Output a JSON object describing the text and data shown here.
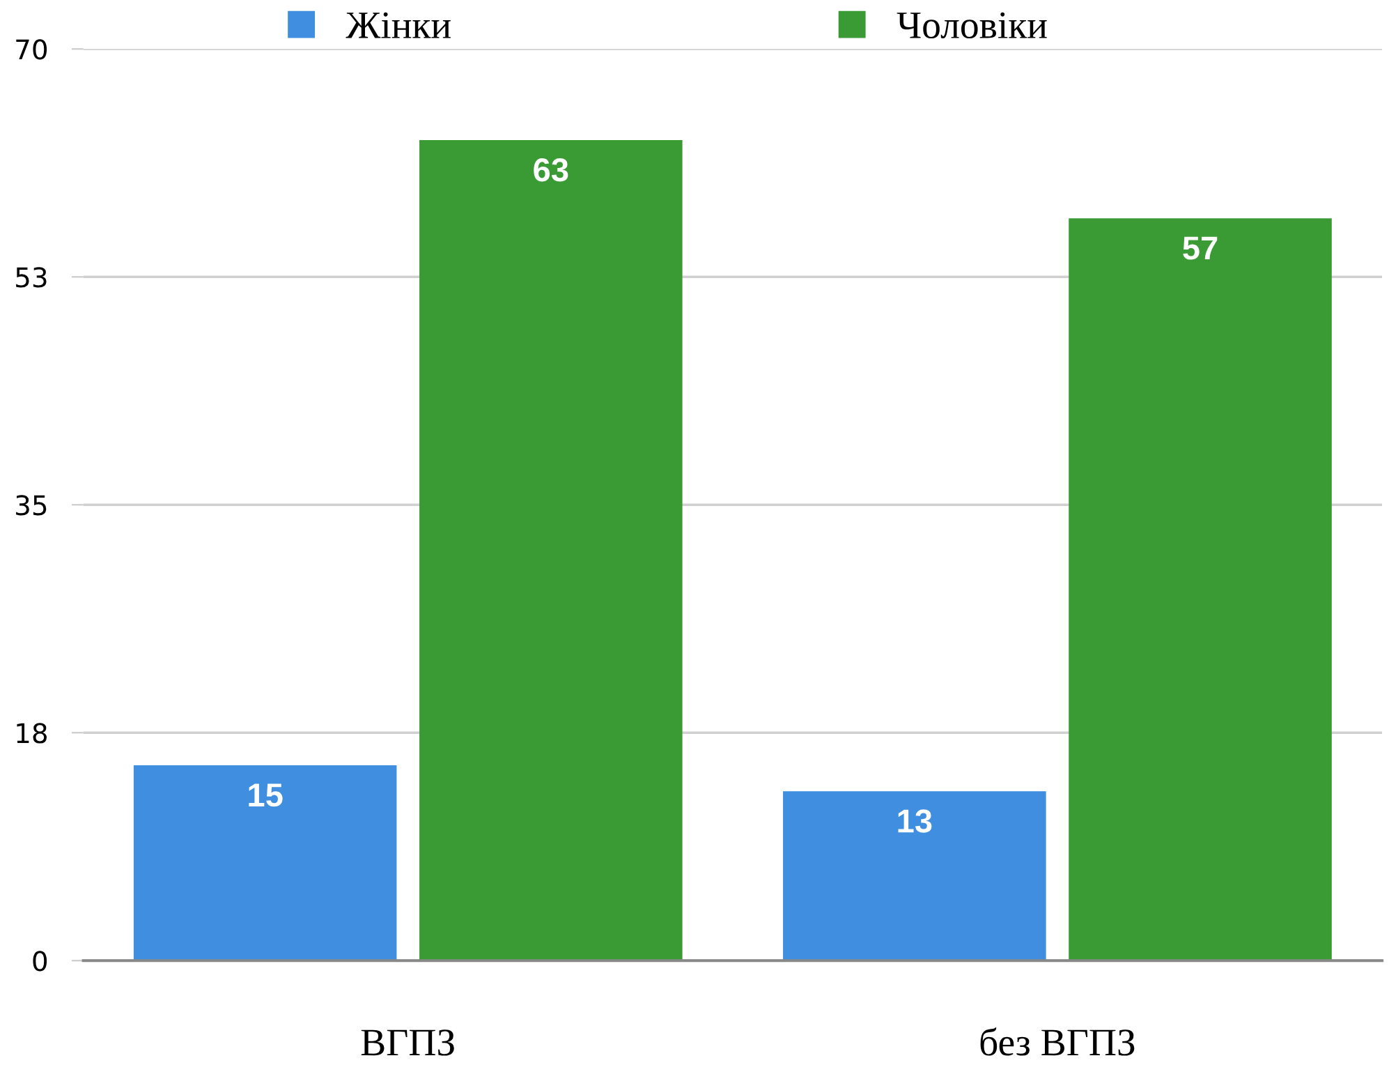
{
  "chart_data": {
    "type": "bar",
    "categories": [
      "ВГПЗ",
      "без ВГПЗ"
    ],
    "series": [
      {
        "name": "Жінки",
        "color": "#3f8ee0",
        "values": [
          15,
          13
        ]
      },
      {
        "name": "Чоловіки",
        "color": "#3a9a34",
        "values": [
          63,
          57
        ]
      }
    ],
    "ylim": [
      0,
      70
    ],
    "yticks": [
      0,
      {
        "value": 17.5,
        "label": "18"
      },
      35,
      {
        "value": 52.5,
        "label": "53"
      },
      70
    ],
    "grid": "y",
    "legend": "top",
    "data_labels": true
  }
}
